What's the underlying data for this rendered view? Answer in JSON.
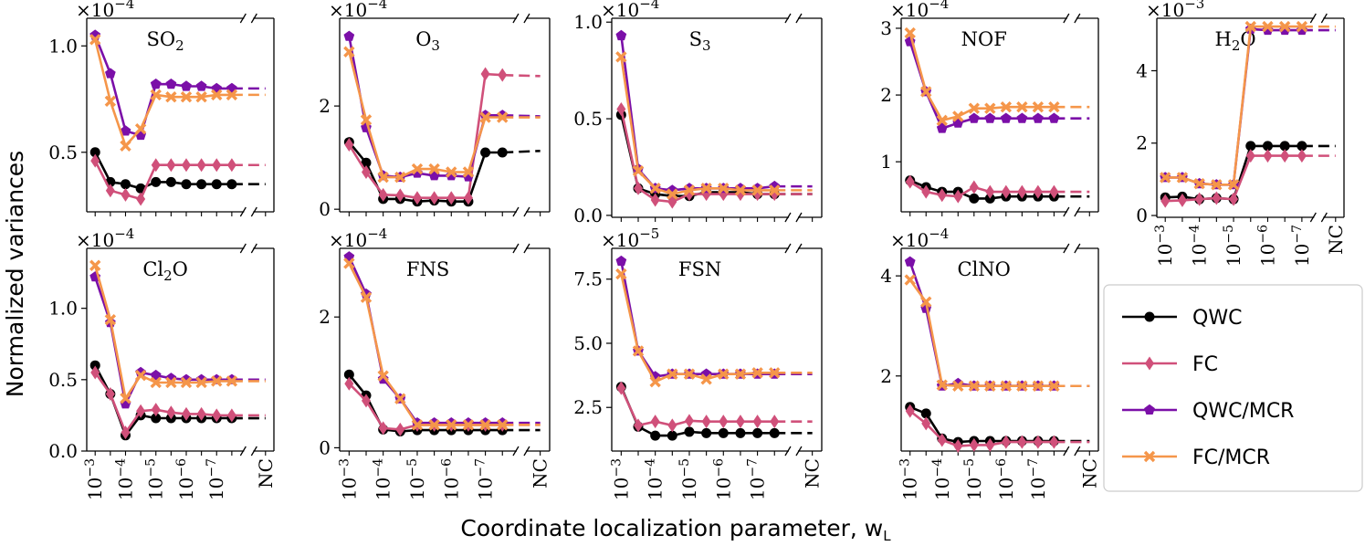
{
  "figure": {
    "ylabel": "Normalized variances",
    "xlabel": "Coordinate localization parameter, w",
    "xlabel_sub": "L"
  },
  "legend": [
    {
      "name": "QWC",
      "color": "#000000",
      "marker": "circle"
    },
    {
      "name": "FC",
      "color": "#d0507a",
      "marker": "diamond"
    },
    {
      "name": "QWC/MCR",
      "color": "#7b0fa8",
      "marker": "pentagon"
    },
    {
      "name": "FC/MCR",
      "color": "#f5964a",
      "marker": "x"
    }
  ],
  "chart_data": [
    {
      "type": "line",
      "title": "SO2",
      "multiplier": "×10",
      "exponent": "−4",
      "ylim": [
        0.22,
        1.13
      ],
      "yticks": [
        0.5,
        1.0
      ],
      "ytick_labels": [
        "0.5",
        "1.0"
      ],
      "xticks_visible": false,
      "series": [
        {
          "name": "QWC",
          "values": [
            0.5,
            0.36,
            0.35,
            0.33,
            0.36,
            0.36,
            0.35,
            0.35,
            0.35,
            0.35,
            0.35
          ]
        },
        {
          "name": "FC",
          "values": [
            0.46,
            0.32,
            0.3,
            0.28,
            0.44,
            0.44,
            0.44,
            0.44,
            0.44,
            0.44,
            0.44
          ]
        },
        {
          "name": "QWC/MCR",
          "values": [
            1.05,
            0.87,
            0.6,
            0.58,
            0.82,
            0.82,
            0.81,
            0.81,
            0.8,
            0.8,
            0.8
          ]
        },
        {
          "name": "FC/MCR",
          "values": [
            1.03,
            0.74,
            0.53,
            0.61,
            0.77,
            0.76,
            0.76,
            0.76,
            0.77,
            0.77,
            0.77
          ]
        }
      ]
    },
    {
      "type": "line",
      "title": "O3",
      "multiplier": "×10",
      "exponent": "−4",
      "ylim": [
        -0.05,
        3.7
      ],
      "yticks": [
        0,
        2
      ],
      "ytick_labels": [
        "0",
        "2"
      ],
      "xticks_visible": false,
      "series": [
        {
          "name": "QWC",
          "values": [
            1.3,
            0.9,
            0.2,
            0.2,
            0.15,
            0.17,
            0.15,
            0.15,
            1.1,
            1.1,
            1.13
          ]
        },
        {
          "name": "FC",
          "values": [
            1.25,
            0.72,
            0.28,
            0.27,
            0.22,
            0.22,
            0.22,
            0.22,
            2.62,
            2.6,
            2.58
          ]
        },
        {
          "name": "QWC/MCR",
          "values": [
            3.35,
            1.58,
            0.65,
            0.62,
            0.7,
            0.65,
            0.65,
            0.63,
            1.82,
            1.82,
            1.8
          ]
        },
        {
          "name": "FC/MCR",
          "values": [
            3.05,
            1.73,
            0.62,
            0.62,
            0.78,
            0.78,
            0.72,
            0.72,
            1.78,
            1.78,
            1.78
          ]
        }
      ]
    },
    {
      "type": "line",
      "title": "S3",
      "multiplier": "×10",
      "exponent": "−4",
      "ylim": [
        -0.01,
        1.02
      ],
      "yticks": [
        0.0,
        0.5,
        1.0
      ],
      "ytick_labels": [
        "0.0",
        "0.5",
        "1.0"
      ],
      "xticks_visible": false,
      "series": [
        {
          "name": "QWC",
          "values": [
            0.52,
            0.14,
            0.11,
            0.1,
            0.1,
            0.12,
            0.12,
            0.12,
            0.11,
            0.11,
            0.11
          ]
        },
        {
          "name": "FC",
          "values": [
            0.55,
            0.14,
            0.08,
            0.07,
            0.11,
            0.11,
            0.11,
            0.11,
            0.11,
            0.11,
            0.11
          ]
        },
        {
          "name": "QWC/MCR",
          "values": [
            0.93,
            0.24,
            0.14,
            0.13,
            0.14,
            0.14,
            0.14,
            0.14,
            0.14,
            0.15,
            0.15
          ]
        },
        {
          "name": "FC/MCR",
          "values": [
            0.82,
            0.23,
            0.14,
            0.11,
            0.13,
            0.14,
            0.14,
            0.13,
            0.13,
            0.13,
            0.13
          ]
        }
      ]
    },
    {
      "type": "line",
      "title": "NOF",
      "multiplier": "×10",
      "exponent": "−4",
      "ylim": [
        0.25,
        3.15
      ],
      "yticks": [
        1,
        2,
        3
      ],
      "ytick_labels": [
        "1",
        "2",
        "3"
      ],
      "xticks_visible": false,
      "series": [
        {
          "name": "QWC",
          "values": [
            0.72,
            0.62,
            0.55,
            0.55,
            0.45,
            0.45,
            0.48,
            0.48,
            0.48,
            0.48,
            0.48
          ]
        },
        {
          "name": "FC",
          "values": [
            0.7,
            0.55,
            0.5,
            0.48,
            0.62,
            0.55,
            0.55,
            0.55,
            0.55,
            0.55,
            0.55
          ]
        },
        {
          "name": "QWC/MCR",
          "values": [
            2.8,
            2.05,
            1.5,
            1.58,
            1.65,
            1.65,
            1.65,
            1.65,
            1.65,
            1.65,
            1.65
          ]
        },
        {
          "name": "FC/MCR",
          "values": [
            2.93,
            2.05,
            1.62,
            1.68,
            1.8,
            1.8,
            1.82,
            1.82,
            1.82,
            1.82,
            1.82
          ]
        }
      ]
    },
    {
      "type": "line",
      "title": "H2O",
      "multiplier": "×10",
      "exponent": "−3",
      "ylim": [
        -0.05,
        5.45
      ],
      "yticks": [
        0,
        2,
        4
      ],
      "ytick_labels": [
        "0",
        "2",
        "4"
      ],
      "xticks_visible": true,
      "series": [
        {
          "name": "QWC",
          "values": [
            0.5,
            0.52,
            0.45,
            0.48,
            0.45,
            1.92,
            1.92,
            1.92,
            1.92,
            1.92
          ]
        },
        {
          "name": "FC",
          "values": [
            0.4,
            0.42,
            0.45,
            0.48,
            0.45,
            1.65,
            1.65,
            1.65,
            1.65,
            1.65
          ]
        },
        {
          "name": "QWC/MCR",
          "values": [
            1.05,
            1.05,
            0.88,
            0.85,
            0.85,
            5.15,
            5.12,
            5.12,
            5.12,
            5.12
          ]
        },
        {
          "name": "FC/MCR",
          "values": [
            1.05,
            1.05,
            0.88,
            0.85,
            0.85,
            5.22,
            5.22,
            5.22,
            5.22,
            5.22
          ]
        }
      ]
    },
    {
      "type": "line",
      "title": "Cl2O",
      "multiplier": "×10",
      "exponent": "−4",
      "ylim": [
        0.0,
        1.42
      ],
      "yticks": [
        0.0,
        0.5,
        1.0
      ],
      "ytick_labels": [
        "0.0",
        "0.5",
        "1.0"
      ],
      "xticks_visible": true,
      "series": [
        {
          "name": "QWC",
          "values": [
            0.6,
            0.4,
            0.11,
            0.25,
            0.23,
            0.23,
            0.23,
            0.23,
            0.23,
            0.23,
            0.23
          ]
        },
        {
          "name": "FC",
          "values": [
            0.55,
            0.4,
            0.13,
            0.28,
            0.29,
            0.27,
            0.26,
            0.26,
            0.25,
            0.25,
            0.25
          ]
        },
        {
          "name": "QWC/MCR",
          "values": [
            1.22,
            0.9,
            0.33,
            0.55,
            0.53,
            0.51,
            0.5,
            0.5,
            0.5,
            0.5,
            0.5
          ]
        },
        {
          "name": "FC/MCR",
          "values": [
            1.3,
            0.92,
            0.37,
            0.53,
            0.48,
            0.48,
            0.48,
            0.48,
            0.49,
            0.49,
            0.49
          ]
        }
      ]
    },
    {
      "type": "line",
      "title": "FNS",
      "multiplier": "×10",
      "exponent": "−4",
      "ylim": [
        -0.05,
        3.05
      ],
      "yticks": [
        0,
        2
      ],
      "ytick_labels": [
        "0",
        "2"
      ],
      "xticks_visible": true,
      "series": [
        {
          "name": "QWC",
          "values": [
            1.12,
            0.8,
            0.28,
            0.25,
            0.27,
            0.27,
            0.27,
            0.27,
            0.27,
            0.27,
            0.27
          ]
        },
        {
          "name": "FC",
          "values": [
            0.98,
            0.72,
            0.3,
            0.28,
            0.35,
            0.35,
            0.35,
            0.35,
            0.35,
            0.35,
            0.35
          ]
        },
        {
          "name": "QWC/MCR",
          "values": [
            2.92,
            2.35,
            1.05,
            0.75,
            0.38,
            0.38,
            0.38,
            0.38,
            0.38,
            0.38,
            0.38
          ]
        },
        {
          "name": "FC/MCR",
          "values": [
            2.82,
            2.3,
            1.1,
            0.75,
            0.35,
            0.35,
            0.35,
            0.35,
            0.35,
            0.35,
            0.35
          ]
        }
      ]
    },
    {
      "type": "line",
      "title": "FSN",
      "multiplier": "×10",
      "exponent": "−5",
      "ylim": [
        0.8,
        8.7
      ],
      "yticks": [
        2.5,
        5.0,
        7.5
      ],
      "ytick_labels": [
        "2.5",
        "5.0",
        "7.5"
      ],
      "xticks_visible": true,
      "series": [
        {
          "name": "QWC",
          "values": [
            3.3,
            1.75,
            1.4,
            1.4,
            1.55,
            1.5,
            1.5,
            1.5,
            1.5,
            1.5,
            1.5
          ]
        },
        {
          "name": "FC",
          "values": [
            3.25,
            1.8,
            1.95,
            1.8,
            1.98,
            1.95,
            1.95,
            1.95,
            1.95,
            1.95,
            1.95
          ]
        },
        {
          "name": "QWC/MCR",
          "values": [
            8.2,
            4.7,
            3.7,
            3.8,
            3.8,
            3.8,
            3.8,
            3.8,
            3.8,
            3.8,
            3.8
          ]
        },
        {
          "name": "FC/MCR",
          "values": [
            7.7,
            4.7,
            3.5,
            3.8,
            3.8,
            3.6,
            3.8,
            3.8,
            3.85,
            3.85,
            3.85
          ]
        }
      ]
    },
    {
      "type": "line",
      "title": "ClNO",
      "multiplier": "×10",
      "exponent": "−4",
      "ylim": [
        0.5,
        4.55
      ],
      "yticks": [
        2,
        4
      ],
      "ytick_labels": [
        "2",
        "4"
      ],
      "xticks_visible": true,
      "series": [
        {
          "name": "QWC",
          "values": [
            1.38,
            1.25,
            0.75,
            0.68,
            0.7,
            0.7,
            0.7,
            0.7,
            0.7,
            0.7,
            0.7
          ]
        },
        {
          "name": "FC",
          "values": [
            1.3,
            1.05,
            0.72,
            0.6,
            0.62,
            0.62,
            0.68,
            0.68,
            0.68,
            0.68,
            0.68
          ]
        },
        {
          "name": "QWC/MCR",
          "values": [
            4.28,
            3.35,
            1.8,
            1.85,
            1.8,
            1.8,
            1.8,
            1.8,
            1.8,
            1.8,
            1.8
          ]
        },
        {
          "name": "FC/MCR",
          "values": [
            3.92,
            3.48,
            1.82,
            1.8,
            1.8,
            1.8,
            1.8,
            1.8,
            1.8,
            1.8,
            1.8
          ]
        }
      ]
    }
  ],
  "xticks": {
    "mantissa": "10",
    "exponents": [
      "−3",
      "−4",
      "−5",
      "−6",
      "−7"
    ],
    "last": "NC"
  }
}
